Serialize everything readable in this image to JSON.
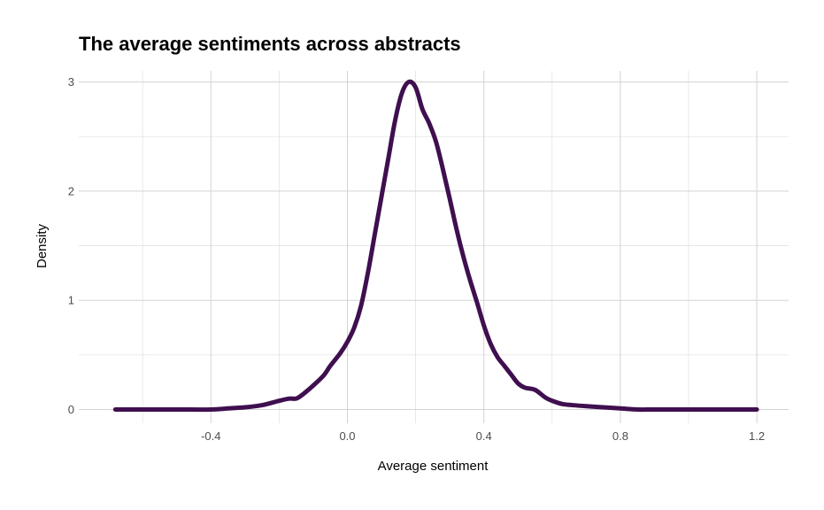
{
  "chart_data": {
    "type": "line",
    "title": "The average sentiments across abstracts",
    "xlabel": "Average sentiment",
    "ylabel": "Density",
    "xlim": [
      -0.68,
      1.2
    ],
    "ylim": [
      0,
      3
    ],
    "x_ticks": [
      -0.4,
      0.0,
      0.4,
      0.8,
      1.2
    ],
    "x_tick_labels": [
      "-0.4",
      "0.0",
      "0.4",
      "0.8",
      "1.2"
    ],
    "x_minor_ticks": [
      -0.6,
      -0.2,
      0.2,
      0.6,
      1.0
    ],
    "y_ticks": [
      0,
      1,
      2,
      3
    ],
    "y_tick_labels": [
      "0",
      "1",
      "2",
      "3"
    ],
    "y_minor_ticks": [
      0.5,
      1.5,
      2.5
    ],
    "grid": true,
    "legend": "none",
    "line_color": "#3f0f4f",
    "series": [
      {
        "x": [
          -0.68,
          -0.6,
          -0.5,
          -0.4,
          -0.35,
          -0.3,
          -0.25,
          -0.2,
          -0.17,
          -0.15,
          -0.13,
          -0.1,
          -0.07,
          -0.05,
          -0.02,
          0.0,
          0.02,
          0.04,
          0.06,
          0.08,
          0.1,
          0.12,
          0.14,
          0.16,
          0.18,
          0.2,
          0.22,
          0.24,
          0.26,
          0.28,
          0.3,
          0.32,
          0.34,
          0.36,
          0.38,
          0.4,
          0.42,
          0.44,
          0.46,
          0.48,
          0.5,
          0.52,
          0.55,
          0.58,
          0.6,
          0.63,
          0.66,
          0.7,
          0.75,
          0.8,
          0.85,
          0.9,
          1.0,
          1.1,
          1.2
        ],
        "y": [
          0.0,
          0.0,
          0.0,
          0.0,
          0.01,
          0.02,
          0.04,
          0.08,
          0.1,
          0.1,
          0.14,
          0.22,
          0.31,
          0.4,
          0.52,
          0.62,
          0.75,
          0.95,
          1.25,
          1.6,
          1.95,
          2.3,
          2.65,
          2.9,
          3.0,
          2.95,
          2.75,
          2.62,
          2.45,
          2.2,
          1.93,
          1.65,
          1.4,
          1.18,
          0.98,
          0.77,
          0.6,
          0.48,
          0.4,
          0.32,
          0.24,
          0.2,
          0.18,
          0.11,
          0.08,
          0.05,
          0.04,
          0.03,
          0.02,
          0.01,
          0.0,
          0.0,
          0.0,
          0.0,
          0.0
        ]
      }
    ]
  }
}
